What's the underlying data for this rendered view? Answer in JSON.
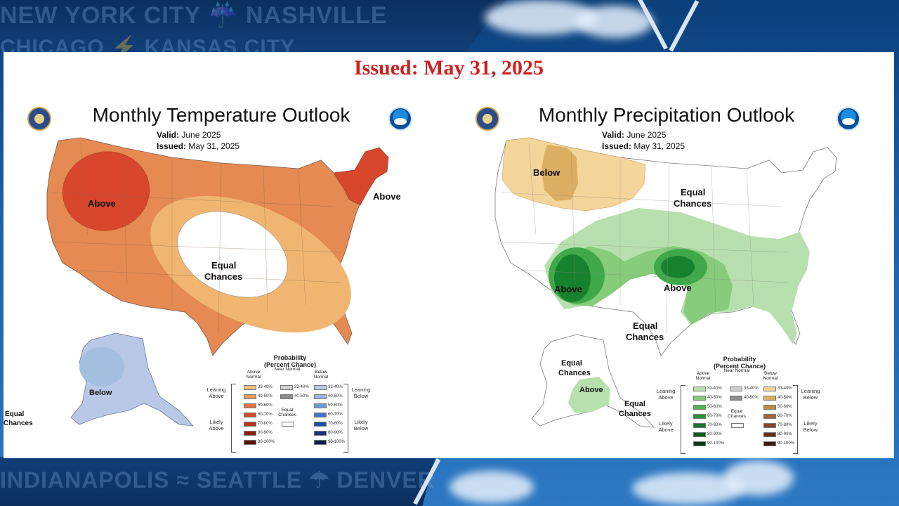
{
  "background": {
    "cities_top_1": "NEW YORK CITY ☔ NASHVILLE",
    "cities_top_2": "CHICAGO ⚡ KANSAS CITY",
    "cities_bottom": "INDIANAPOLIS ≈ SEATTLE ☂ DENVER"
  },
  "issued_banner": "Issued: May 31, 2025",
  "temperature": {
    "title": "Monthly Temperature Outlook",
    "valid_label": "Valid:",
    "valid_value": "June 2025",
    "issued_label": "Issued:",
    "issued_value": "May 31, 2025",
    "labels": {
      "above_west": "Above",
      "above_northeast": "Above",
      "equal_1": "Equal",
      "equal_2": "Chances",
      "below_alaska": "Below",
      "equal_ak_1": "Equal",
      "equal_ak_2": "Chances"
    },
    "colors": {
      "above_33_40": "#f0c27a",
      "above_40_50": "#e8955a",
      "above_50_60": "#e06a3a",
      "above_60_70": "#d8462b",
      "below_33_40": "#b7c6e2",
      "below_40_50": "#a7c2e0",
      "equal": "#ffffff"
    },
    "legend": {
      "title_1": "Probability",
      "title_2": "(Percent Chance)",
      "col_above": "Above Normal",
      "col_near": "Near Normal",
      "col_below": "Below Normal",
      "leaning_above": "Leaning Above",
      "likely_above": "Likely Above",
      "leaning_below": "Leaning Below",
      "likely_below": "Likely Below",
      "equal_chances": "Equal Chances",
      "above_swatches": [
        {
          "label": "33-40%",
          "color": "#f3c07e"
        },
        {
          "label": "40-50%",
          "color": "#ec9a5c"
        },
        {
          "label": "50-60%",
          "color": "#e4723c"
        },
        {
          "label": "60-70%",
          "color": "#d64b2a"
        },
        {
          "label": "70-80%",
          "color": "#b8321f"
        },
        {
          "label": "80-90%",
          "color": "#8c1f16"
        },
        {
          "label": "90-100%",
          "color": "#5e0f0b"
        }
      ],
      "near_swatches": [
        {
          "label": "33-40%",
          "color": "#cfcfcf"
        },
        {
          "label": "40-50%",
          "color": "#8e8e8e"
        }
      ],
      "below_swatches": [
        {
          "label": "33-40%",
          "color": "#b9c8e6"
        },
        {
          "label": "40-50%",
          "color": "#98b6e0"
        },
        {
          "label": "50-60%",
          "color": "#6b9ad6"
        },
        {
          "label": "60-70%",
          "color": "#3f76c8"
        },
        {
          "label": "70-80%",
          "color": "#1f4fa8"
        },
        {
          "label": "80-90%",
          "color": "#1a2f7e"
        },
        {
          "label": "90-100%",
          "color": "#101b52"
        }
      ]
    }
  },
  "precipitation": {
    "title": "Monthly Precipitation Outlook",
    "valid_label": "Valid:",
    "valid_value": "June 2025",
    "issued_label": "Issued:",
    "issued_value": "May 31, 2025",
    "labels": {
      "below_north": "Below",
      "equal_north_1": "Equal",
      "equal_north_2": "Chances",
      "above_sw": "Above",
      "above_central": "Above",
      "equal_south_1": "Equal",
      "equal_south_2": "Chances",
      "equal_ak_west_1": "Equal",
      "equal_ak_west_2": "Chances",
      "above_alaska": "Above",
      "equal_ak_east_1": "Equal",
      "equal_ak_east_2": "Chances"
    },
    "colors": {
      "below_33_40": "#f4d59a",
      "below_40_50": "#dcae62",
      "above_33_40": "#b8e0ae",
      "above_40_50": "#82c878",
      "above_50_60": "#3fa94a",
      "above_60_70": "#17822d",
      "equal": "#ffffff"
    },
    "legend": {
      "title_1": "Probability",
      "title_2": "(Percent Chance)",
      "col_above": "Above Normal",
      "col_near": "Near Normal",
      "col_below": "Below Normal",
      "leaning_above": "Leaning Above",
      "likely_above": "Likely Above",
      "leaning_below": "Leaning Below",
      "likely_below": "Likely Below",
      "equal_chances": "Equal Chances",
      "above_swatches": [
        {
          "label": "33-40%",
          "color": "#b8e0ae"
        },
        {
          "label": "40-50%",
          "color": "#86cc7a"
        },
        {
          "label": "50-60%",
          "color": "#4fb652"
        },
        {
          "label": "60-70%",
          "color": "#24953a"
        },
        {
          "label": "70-80%",
          "color": "#157428"
        },
        {
          "label": "80-90%",
          "color": "#0d5a1d"
        },
        {
          "label": "90-100%",
          "color": "#073a12"
        }
      ],
      "near_swatches": [
        {
          "label": "33-40%",
          "color": "#cfcfcf"
        },
        {
          "label": "40-50%",
          "color": "#8e8e8e"
        }
      ],
      "below_swatches": [
        {
          "label": "33-40%",
          "color": "#f2d49a"
        },
        {
          "label": "40-50%",
          "color": "#dcae66"
        },
        {
          "label": "50-60%",
          "color": "#c58844"
        },
        {
          "label": "60-70%",
          "color": "#a86532"
        },
        {
          "label": "70-80%",
          "color": "#874625"
        },
        {
          "label": "80-90%",
          "color": "#663019"
        },
        {
          "label": "90-100%",
          "color": "#3f1c0f"
        }
      ]
    }
  }
}
